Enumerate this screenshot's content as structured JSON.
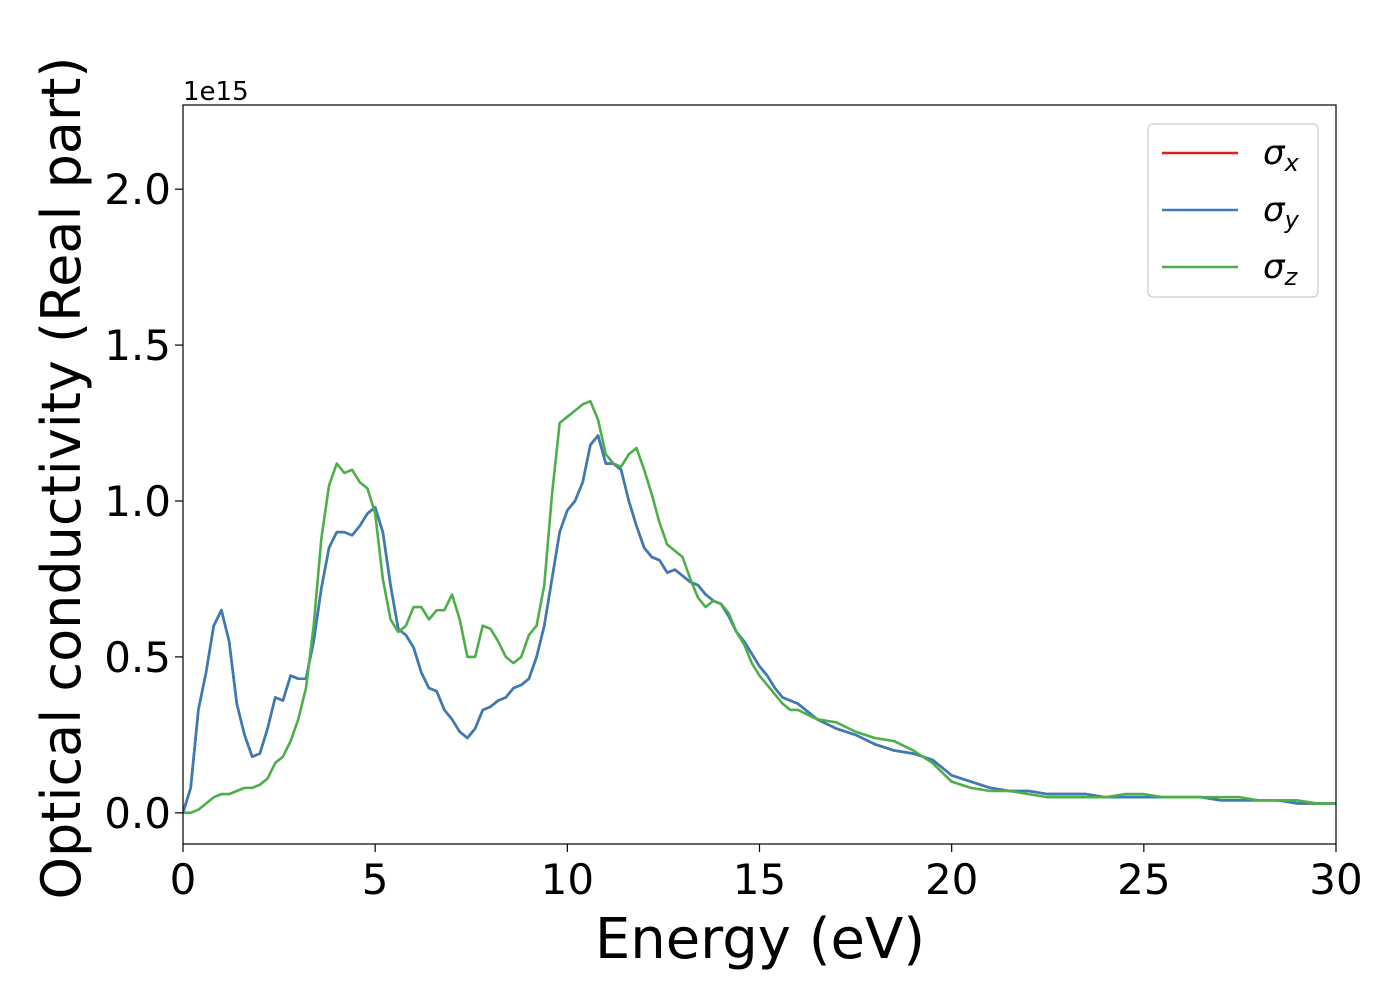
{
  "chart_data": {
    "type": "line",
    "xlabel": "Energy (eV)",
    "ylabel": "Optical conductivity (Real part)",
    "y_offset_text": "1e15",
    "y_multiplier": 1000000000000000.0,
    "xlim": [
      0,
      30
    ],
    "ylim": [
      -0.1,
      2.27
    ],
    "x_ticks": [
      0,
      5,
      10,
      15,
      20,
      25,
      30
    ],
    "x_tick_labels": [
      "0",
      "5",
      "10",
      "15",
      "20",
      "25",
      "30"
    ],
    "y_ticks": [
      0.0,
      0.5,
      1.0,
      1.5,
      2.0
    ],
    "y_tick_labels": [
      "0.0",
      "0.5",
      "1.0",
      "1.5",
      "2.0"
    ],
    "grid": false,
    "legend_position": "top-right",
    "series": [
      {
        "name": "σx",
        "symbol": "σ",
        "subscript": "x",
        "color": "#e41a1c",
        "x": [
          0,
          0.2,
          0.4,
          0.6,
          0.8,
          1.0,
          1.2,
          1.4,
          1.6,
          1.8,
          2.0,
          2.2,
          2.4,
          2.6,
          2.8,
          3.0,
          3.2,
          3.4,
          3.6,
          3.8,
          4.0,
          4.2,
          4.4,
          4.6,
          4.8,
          5.0,
          5.2,
          5.4,
          5.6,
          5.8,
          6.0,
          6.2,
          6.4,
          6.6,
          6.8,
          7.0,
          7.2,
          7.4,
          7.6,
          7.8,
          8.0,
          8.2,
          8.4,
          8.6,
          8.8,
          9.0,
          9.2,
          9.4,
          9.6,
          9.8,
          10.0,
          10.2,
          10.4,
          10.6,
          10.8,
          11.0,
          11.2,
          11.4,
          11.6,
          11.8,
          12.0,
          12.2,
          12.4,
          12.6,
          12.8,
          13.0,
          13.2,
          13.4,
          13.6,
          13.8,
          14.0,
          14.2,
          14.4,
          14.6,
          14.8,
          15.0,
          15.2,
          15.4,
          15.6,
          15.8,
          16.0,
          16.5,
          17.0,
          17.5,
          18.0,
          18.5,
          19.0,
          19.5,
          20.0,
          20.5,
          21.0,
          21.5,
          22.0,
          22.5,
          23.0,
          23.5,
          24.0,
          24.5,
          25.0,
          25.5,
          26.0,
          26.5,
          27.0,
          27.5,
          28.0,
          28.5,
          29.0,
          29.5,
          30.0
        ],
        "values": [
          0.0,
          0.08,
          0.33,
          0.45,
          0.6,
          0.65,
          0.55,
          0.35,
          0.25,
          0.18,
          0.19,
          0.27,
          0.37,
          0.36,
          0.44,
          0.43,
          0.43,
          0.55,
          0.72,
          0.85,
          0.9,
          0.9,
          0.89,
          0.92,
          0.96,
          0.98,
          0.9,
          0.73,
          0.59,
          0.57,
          0.53,
          0.45,
          0.4,
          0.39,
          0.33,
          0.3,
          0.26,
          0.24,
          0.27,
          0.33,
          0.34,
          0.36,
          0.37,
          0.4,
          0.41,
          0.43,
          0.5,
          0.6,
          0.75,
          0.9,
          0.97,
          1.0,
          1.06,
          1.18,
          1.21,
          1.12,
          1.12,
          1.1,
          1.0,
          0.92,
          0.85,
          0.82,
          0.81,
          0.77,
          0.78,
          0.76,
          0.74,
          0.73,
          0.7,
          0.68,
          0.67,
          0.63,
          0.58,
          0.55,
          0.51,
          0.47,
          0.44,
          0.4,
          0.37,
          0.36,
          0.35,
          0.3,
          0.27,
          0.25,
          0.22,
          0.2,
          0.19,
          0.17,
          0.12,
          0.1,
          0.08,
          0.07,
          0.07,
          0.06,
          0.06,
          0.06,
          0.05,
          0.05,
          0.05,
          0.05,
          0.05,
          0.05,
          0.04,
          0.04,
          0.04,
          0.04,
          0.03,
          0.03,
          0.03
        ]
      },
      {
        "name": "σy",
        "symbol": "σ",
        "subscript": "y",
        "color": "#377eb8",
        "x": [
          0,
          0.2,
          0.4,
          0.6,
          0.8,
          1.0,
          1.2,
          1.4,
          1.6,
          1.8,
          2.0,
          2.2,
          2.4,
          2.6,
          2.8,
          3.0,
          3.2,
          3.4,
          3.6,
          3.8,
          4.0,
          4.2,
          4.4,
          4.6,
          4.8,
          5.0,
          5.2,
          5.4,
          5.6,
          5.8,
          6.0,
          6.2,
          6.4,
          6.6,
          6.8,
          7.0,
          7.2,
          7.4,
          7.6,
          7.8,
          8.0,
          8.2,
          8.4,
          8.6,
          8.8,
          9.0,
          9.2,
          9.4,
          9.6,
          9.8,
          10.0,
          10.2,
          10.4,
          10.6,
          10.8,
          11.0,
          11.2,
          11.4,
          11.6,
          11.8,
          12.0,
          12.2,
          12.4,
          12.6,
          12.8,
          13.0,
          13.2,
          13.4,
          13.6,
          13.8,
          14.0,
          14.2,
          14.4,
          14.6,
          14.8,
          15.0,
          15.2,
          15.4,
          15.6,
          15.8,
          16.0,
          16.5,
          17.0,
          17.5,
          18.0,
          18.5,
          19.0,
          19.5,
          20.0,
          20.5,
          21.0,
          21.5,
          22.0,
          22.5,
          23.0,
          23.5,
          24.0,
          24.5,
          25.0,
          25.5,
          26.0,
          26.5,
          27.0,
          27.5,
          28.0,
          28.5,
          29.0,
          29.5,
          30.0
        ],
        "values": [
          0.0,
          0.08,
          0.33,
          0.45,
          0.6,
          0.65,
          0.55,
          0.35,
          0.25,
          0.18,
          0.19,
          0.27,
          0.37,
          0.36,
          0.44,
          0.43,
          0.43,
          0.55,
          0.72,
          0.85,
          0.9,
          0.9,
          0.89,
          0.92,
          0.96,
          0.98,
          0.9,
          0.73,
          0.59,
          0.57,
          0.53,
          0.45,
          0.4,
          0.39,
          0.33,
          0.3,
          0.26,
          0.24,
          0.27,
          0.33,
          0.34,
          0.36,
          0.37,
          0.4,
          0.41,
          0.43,
          0.5,
          0.6,
          0.75,
          0.9,
          0.97,
          1.0,
          1.06,
          1.18,
          1.21,
          1.12,
          1.12,
          1.1,
          1.0,
          0.92,
          0.85,
          0.82,
          0.81,
          0.77,
          0.78,
          0.76,
          0.74,
          0.73,
          0.7,
          0.68,
          0.67,
          0.63,
          0.58,
          0.55,
          0.51,
          0.47,
          0.44,
          0.4,
          0.37,
          0.36,
          0.35,
          0.3,
          0.27,
          0.25,
          0.22,
          0.2,
          0.19,
          0.17,
          0.12,
          0.1,
          0.08,
          0.07,
          0.07,
          0.06,
          0.06,
          0.06,
          0.05,
          0.05,
          0.05,
          0.05,
          0.05,
          0.05,
          0.04,
          0.04,
          0.04,
          0.04,
          0.03,
          0.03,
          0.03
        ]
      },
      {
        "name": "σz",
        "symbol": "σ",
        "subscript": "z",
        "color": "#4daf4a",
        "x": [
          0,
          0.2,
          0.4,
          0.6,
          0.8,
          1.0,
          1.2,
          1.4,
          1.6,
          1.8,
          2.0,
          2.2,
          2.4,
          2.6,
          2.8,
          3.0,
          3.2,
          3.4,
          3.6,
          3.8,
          4.0,
          4.2,
          4.4,
          4.6,
          4.8,
          5.0,
          5.2,
          5.4,
          5.6,
          5.8,
          6.0,
          6.2,
          6.4,
          6.6,
          6.8,
          7.0,
          7.2,
          7.4,
          7.6,
          7.8,
          8.0,
          8.2,
          8.4,
          8.6,
          8.8,
          9.0,
          9.2,
          9.4,
          9.6,
          9.8,
          10.0,
          10.2,
          10.4,
          10.6,
          10.8,
          11.0,
          11.2,
          11.4,
          11.6,
          11.8,
          12.0,
          12.2,
          12.4,
          12.6,
          12.8,
          13.0,
          13.2,
          13.4,
          13.6,
          13.8,
          14.0,
          14.2,
          14.4,
          14.6,
          14.8,
          15.0,
          15.2,
          15.4,
          15.6,
          15.8,
          16.0,
          16.5,
          17.0,
          17.5,
          18.0,
          18.5,
          19.0,
          19.5,
          20.0,
          20.5,
          21.0,
          21.5,
          22.0,
          22.5,
          23.0,
          23.5,
          24.0,
          24.5,
          25.0,
          25.5,
          26.0,
          26.5,
          27.0,
          27.5,
          28.0,
          28.5,
          29.0,
          29.5,
          30.0
        ],
        "values": [
          0.0,
          0.0,
          0.01,
          0.03,
          0.05,
          0.06,
          0.06,
          0.07,
          0.08,
          0.08,
          0.09,
          0.11,
          0.16,
          0.18,
          0.23,
          0.3,
          0.4,
          0.6,
          0.88,
          1.05,
          1.12,
          1.09,
          1.1,
          1.06,
          1.04,
          0.96,
          0.75,
          0.62,
          0.58,
          0.6,
          0.66,
          0.66,
          0.62,
          0.65,
          0.65,
          0.7,
          0.62,
          0.5,
          0.5,
          0.6,
          0.59,
          0.55,
          0.5,
          0.48,
          0.5,
          0.57,
          0.6,
          0.73,
          1.02,
          1.25,
          1.27,
          1.29,
          1.31,
          1.32,
          1.26,
          1.15,
          1.12,
          1.11,
          1.15,
          1.17,
          1.1,
          1.02,
          0.93,
          0.86,
          0.84,
          0.82,
          0.75,
          0.69,
          0.66,
          0.68,
          0.67,
          0.64,
          0.58,
          0.54,
          0.48,
          0.44,
          0.41,
          0.38,
          0.35,
          0.33,
          0.33,
          0.3,
          0.29,
          0.26,
          0.24,
          0.23,
          0.2,
          0.16,
          0.1,
          0.08,
          0.07,
          0.07,
          0.06,
          0.05,
          0.05,
          0.05,
          0.05,
          0.06,
          0.06,
          0.05,
          0.05,
          0.05,
          0.05,
          0.05,
          0.04,
          0.04,
          0.04,
          0.03,
          0.03
        ]
      }
    ]
  }
}
